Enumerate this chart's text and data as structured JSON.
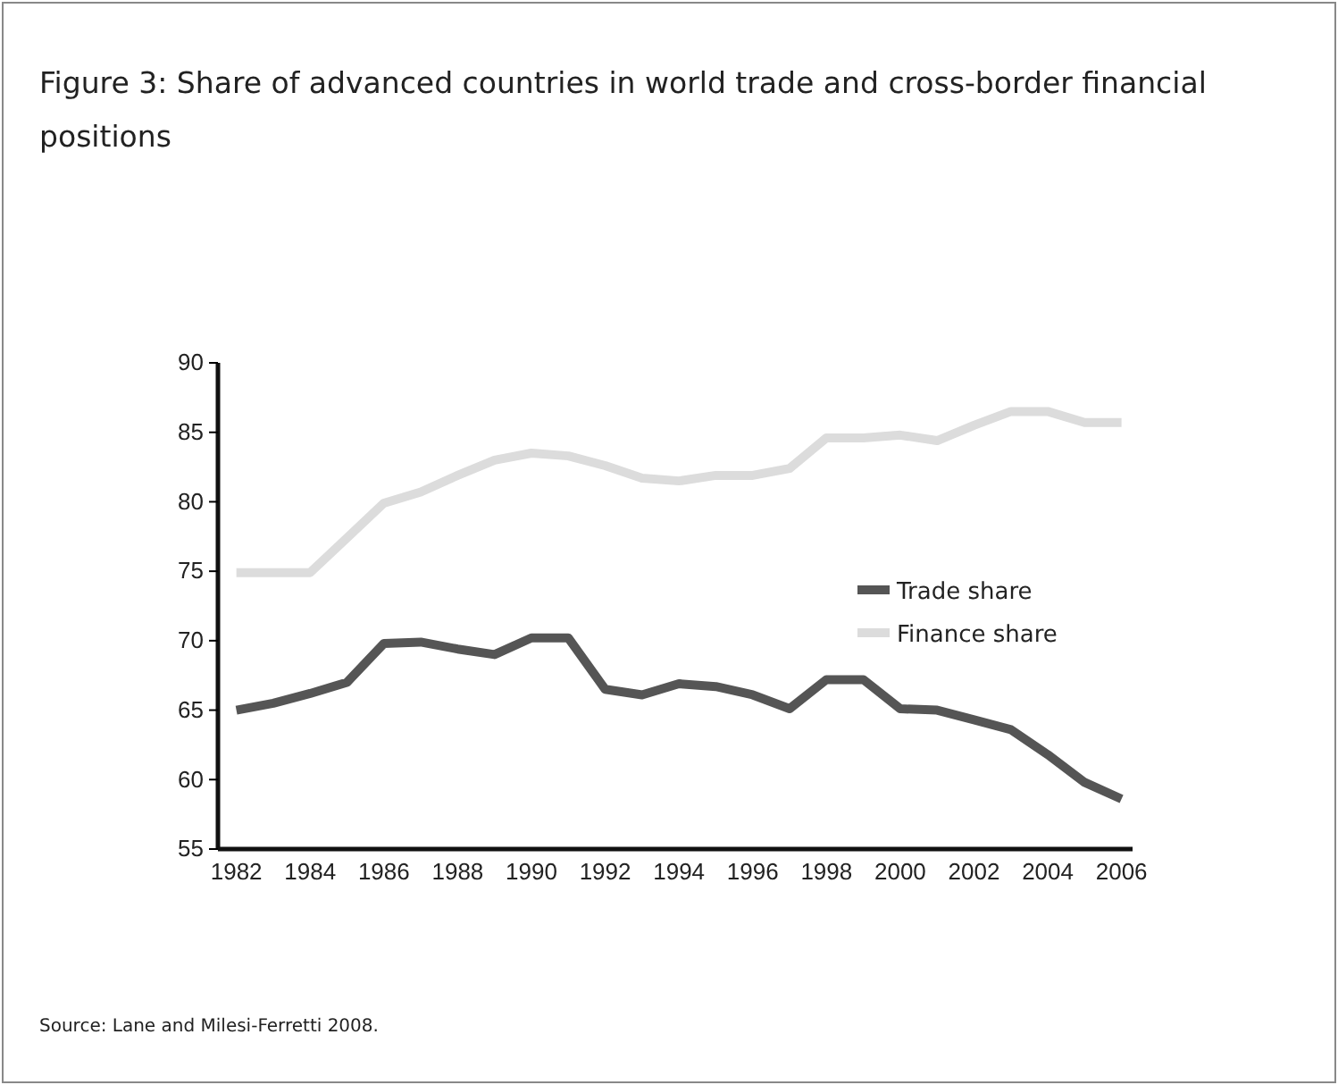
{
  "chart_data": {
    "type": "line",
    "title": "Figure 3: Share of advanced countries in world trade and cross-border financial positions",
    "annotations": [
      "Source: Lane and Milesi-Ferretti 2008."
    ],
    "x": [
      1982,
      1983,
      1984,
      1985,
      1986,
      1987,
      1988,
      1989,
      1990,
      1991,
      1992,
      1993,
      1994,
      1995,
      1996,
      1997,
      1998,
      1999,
      2000,
      2001,
      2002,
      2003,
      2004,
      2005,
      2006
    ],
    "series": [
      {
        "name": "Trade share",
        "color": "#555555",
        "values": [
          65,
          65.5,
          66.2,
          67,
          69.8,
          69.9,
          69.4,
          69,
          70.2,
          70.2,
          66.5,
          66.1,
          66.9,
          66.7,
          66.1,
          65.1,
          67.2,
          67.2,
          65.1,
          65,
          64.3,
          63.6,
          61.8,
          59.8,
          58.6
        ]
      },
      {
        "name": "Finance share",
        "color": "#dcdcdc",
        "values": [
          74.9,
          74.9,
          74.9,
          77.4,
          79.9,
          80.7,
          81.9,
          83,
          83.5,
          83.3,
          82.6,
          81.7,
          81.5,
          81.9,
          81.9,
          82.4,
          84.6,
          84.6,
          84.8,
          84.4,
          85.5,
          86.5,
          86.5,
          85.7,
          85.7
        ]
      }
    ],
    "xlim": [
      1981.5,
      2006.3
    ],
    "xticks": [
      1982,
      1984,
      1986,
      1988,
      1990,
      1992,
      1994,
      1996,
      1998,
      2000,
      2002,
      2004,
      2006
    ],
    "ylim": [
      55,
      90
    ],
    "yticks": [
      55,
      60,
      65,
      70,
      75,
      80,
      85,
      90
    ],
    "grid": false,
    "legend": "right",
    "marker": "none",
    "line_style": "solid"
  }
}
